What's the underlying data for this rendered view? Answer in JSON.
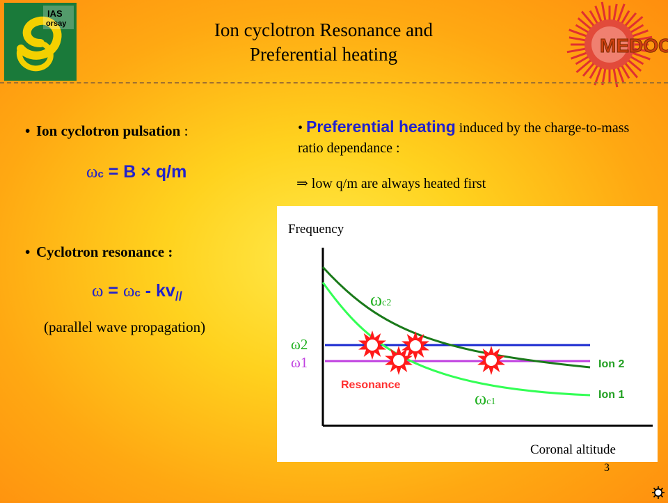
{
  "header": {
    "logo_left_text": [
      "IAS",
      "orsay"
    ],
    "title_lines": [
      "Ion cyclotron Resonance  and",
      "Preferential heating"
    ],
    "logo_right_text": "MEDOC"
  },
  "left": {
    "bullet1_bold": "Ion cyclotron pulsation",
    "bullet1_tail": " :",
    "formula1": {
      "w": "ω",
      "c": "c",
      "eq": " = B × q/m"
    },
    "bullet2": "Cyclotron resonance :",
    "formula2": {
      "w": "ω",
      "eq": " = ",
      "wc": "ω",
      "c": "c",
      "rest": " - kv",
      "par": "//"
    },
    "note": "(parallel wave propagation)"
  },
  "right": {
    "bullet_highlight": "Preferential heating",
    "bullet_rest": " induced by the charge-to-mass ratio dependance :",
    "arrow": "⇒",
    "conclusion": " low q/m are always heated first"
  },
  "diagram": {
    "y_axis_label": "Frequency",
    "x_axis_label": "Coronal altitude",
    "curve_c2_label": {
      "w": "ω",
      "sub": "c2"
    },
    "curve_c1_label": {
      "w": "ω",
      "sub": "c1"
    },
    "omega2_label": "ω2",
    "omega1_label": "ω1",
    "ion2_label": "Ion 2",
    "ion1_label": "Ion 1",
    "resonance_label": "Resonance",
    "colors": {
      "curve_ion2": "#1a7a1a",
      "curve_ion1": "#33ff55",
      "omega2_line": "#1a2ad0",
      "omega1_line": "#c040e0",
      "resonance_text": "#ff3030",
      "label_text": "#22a022",
      "omega_text": "#20b020"
    }
  },
  "footer": {
    "page_number": "3"
  }
}
